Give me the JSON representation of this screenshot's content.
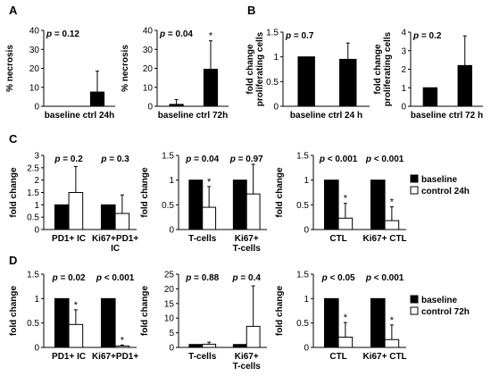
{
  "panel_letters": [
    "A",
    "B",
    "C",
    "D"
  ],
  "legend_c": {
    "labels": [
      "baseline",
      "control 24h"
    ]
  },
  "legend_d": {
    "labels": [
      "baseline",
      "control 72h"
    ]
  },
  "chart_data": [
    {
      "id": "A1",
      "type": "bar",
      "ylabel": "% necrosis",
      "ylim": [
        0,
        40
      ],
      "yticks": [
        0,
        10,
        20,
        30,
        40
      ],
      "categories": [
        "baseline",
        "ctrl 24h"
      ],
      "values": [
        0,
        7.5
      ],
      "errors": [
        0,
        11
      ],
      "pvalues": [
        "p = 0.12"
      ],
      "stars": [
        false,
        false
      ]
    },
    {
      "id": "A2",
      "type": "bar",
      "ylabel": "% necrosis",
      "ylim": [
        0,
        40
      ],
      "yticks": [
        0,
        10,
        20,
        30,
        40
      ],
      "categories": [
        "baseline",
        "ctrl 72h"
      ],
      "values": [
        1,
        19.5
      ],
      "errors": [
        2.5,
        15
      ],
      "pvalues": [
        "p = 0.04"
      ],
      "stars": [
        false,
        true
      ]
    },
    {
      "id": "B1",
      "type": "bar",
      "ylabel": "fold change proliferating cells",
      "ylim": [
        0,
        1.5
      ],
      "yticks": [
        0,
        0.5,
        1,
        1.5
      ],
      "categories": [
        "baseline",
        "ctrl 24 h"
      ],
      "values": [
        1,
        0.95
      ],
      "errors": [
        0,
        0.33
      ],
      "pvalues": [
        "p = 0.7"
      ],
      "stars": [
        false,
        false
      ]
    },
    {
      "id": "B2",
      "type": "bar",
      "ylabel": "fold change proliferating cells",
      "ylim": [
        0,
        4
      ],
      "yticks": [
        0,
        1,
        2,
        3,
        4
      ],
      "categories": [
        "baseline",
        "ctrl 72 h"
      ],
      "values": [
        1,
        2.2
      ],
      "errors": [
        0,
        1.6
      ],
      "pvalues": [
        "p = 0.2"
      ],
      "stars": [
        false,
        false
      ]
    },
    {
      "id": "C1",
      "type": "bar",
      "ylabel": "fold change",
      "ylim": [
        0,
        3
      ],
      "yticks": [
        0,
        0.5,
        1,
        1.5,
        2,
        2.5,
        3
      ],
      "groups": [
        "PD1+ IC",
        "Ki67+PD1+ IC"
      ],
      "series": [
        {
          "values": [
            1,
            1
          ]
        },
        {
          "values": [
            1.5,
            0.65
          ]
        }
      ],
      "errors": [
        1.05,
        0.75
      ],
      "pvalues": [
        "p = 0.2",
        "p = 0.3"
      ],
      "stars": [
        false,
        false
      ]
    },
    {
      "id": "C2",
      "type": "bar",
      "ylabel": "fold change",
      "ylim": [
        0,
        1.5
      ],
      "yticks": [
        0,
        0.5,
        1,
        1.5
      ],
      "groups": [
        "T-cells",
        "Ki67+ T-cells"
      ],
      "series": [
        {
          "values": [
            1,
            1
          ]
        },
        {
          "values": [
            0.45,
            0.72
          ]
        }
      ],
      "errors": [
        0.42,
        0.6
      ],
      "pvalues": [
        "p = 0.04",
        "p = 0.97"
      ],
      "stars": [
        true,
        false
      ]
    },
    {
      "id": "C3",
      "type": "bar",
      "ylabel": "fold change",
      "ylim": [
        0,
        1.5
      ],
      "yticks": [
        0,
        0.5,
        1,
        1.5
      ],
      "groups": [
        "CTL",
        "Ki67+ CTL"
      ],
      "series": [
        {
          "values": [
            1,
            1
          ]
        },
        {
          "values": [
            0.23,
            0.18
          ]
        }
      ],
      "errors": [
        0.3,
        0.28
      ],
      "pvalues": [
        "p < 0.001",
        "p < 0.001"
      ],
      "stars": [
        true,
        true
      ]
    },
    {
      "id": "D1",
      "type": "bar",
      "ylabel": "fold change",
      "ylim": [
        0,
        1.5
      ],
      "yticks": [
        0,
        0.5,
        1,
        1.5
      ],
      "groups": [
        "PD1+ IC",
        "Ki67+PD1+"
      ],
      "series": [
        {
          "values": [
            1,
            1
          ]
        },
        {
          "values": [
            0.47,
            0.03
          ]
        }
      ],
      "errors": [
        0.3,
        0.02
      ],
      "pvalues": [
        "p = 0.02",
        "p < 0.001"
      ],
      "stars": [
        true,
        true
      ]
    },
    {
      "id": "D2",
      "type": "bar",
      "ylabel": "fold change",
      "ylim": [
        0,
        25
      ],
      "yticks": [
        0,
        5,
        10,
        15,
        20,
        25
      ],
      "groups": [
        "T-cells",
        "Ki67+ T-cells"
      ],
      "series": [
        {
          "values": [
            1,
            1
          ]
        },
        {
          "values": [
            1.1,
            7.2
          ]
        }
      ],
      "errors": [
        0.7,
        13.8
      ],
      "pvalues": [
        "p = 0.88",
        "p = 0.4"
      ],
      "stars": [
        false,
        false
      ]
    },
    {
      "id": "D3",
      "type": "bar",
      "ylabel": "fold change",
      "ylim": [
        0,
        1.5
      ],
      "yticks": [
        0,
        0.5,
        1,
        1.5
      ],
      "groups": [
        "CTL",
        "Ki67+ CTL"
      ],
      "series": [
        {
          "values": [
            1,
            1
          ]
        },
        {
          "values": [
            0.21,
            0.16
          ]
        }
      ],
      "errors": [
        0.3,
        0.3
      ],
      "pvalues": [
        "p < 0.05",
        "p < 0.001"
      ],
      "stars": [
        true,
        true
      ]
    }
  ]
}
